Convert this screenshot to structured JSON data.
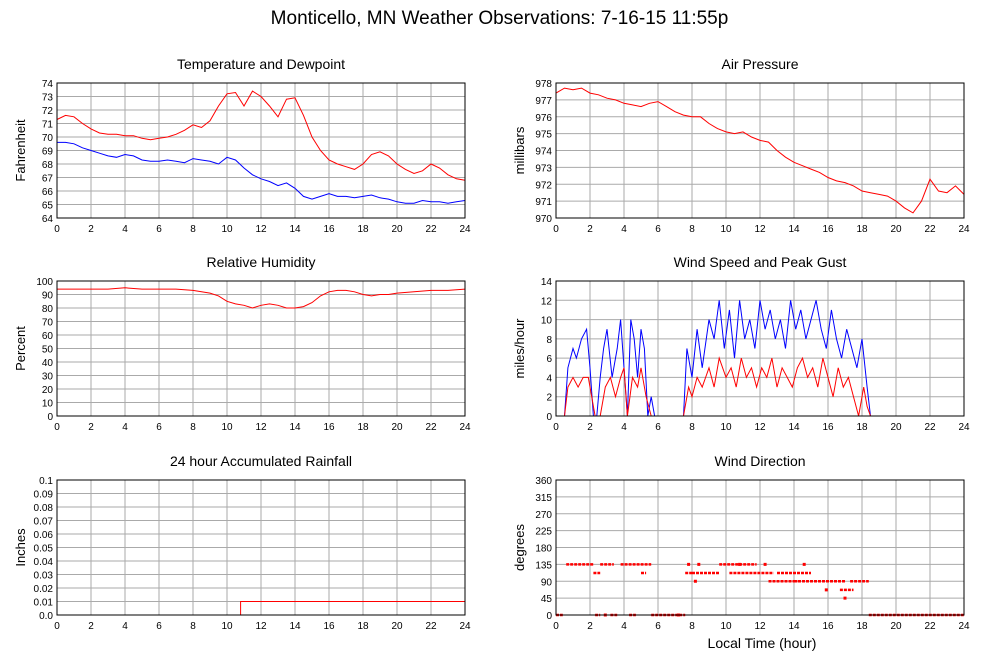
{
  "page": {
    "title": "Monticello, MN Weather Observations: 7-16-15 11:55p",
    "x_axis_label": "Local Time (hour)"
  },
  "colors": {
    "red": "#ff0000",
    "blue": "#0000ff",
    "grid": "#aaaaaa",
    "frame": "#000000"
  },
  "chart_data": [
    {
      "id": "temp",
      "type": "line",
      "title": "Temperature and Dewpoint",
      "ylabel": "Fahrenheit",
      "xlim": [
        0,
        24
      ],
      "ylim": [
        64,
        74
      ],
      "xticks": [
        0,
        2,
        4,
        6,
        8,
        10,
        12,
        14,
        16,
        18,
        20,
        22,
        24
      ],
      "yticks": [
        64,
        65,
        66,
        67,
        68,
        69,
        70,
        71,
        72,
        73,
        74
      ],
      "grid": true,
      "series": [
        {
          "color": "#ff0000",
          "x": [
            0,
            0.5,
            1,
            1.5,
            2,
            2.5,
            3,
            3.5,
            4,
            4.5,
            5,
            5.5,
            6,
            6.5,
            7,
            7.5,
            8,
            8.5,
            9,
            9.5,
            10,
            10.5,
            11,
            11.5,
            12,
            12.5,
            13,
            13.5,
            14,
            14.5,
            15,
            15.5,
            16,
            16.5,
            17,
            17.5,
            18,
            18.5,
            19,
            19.5,
            20,
            20.5,
            21,
            21.5,
            22,
            22.5,
            23,
            23.5,
            24
          ],
          "y": [
            71.3,
            71.6,
            71.5,
            71,
            70.6,
            70.3,
            70.2,
            70.2,
            70.1,
            70.1,
            69.9,
            69.8,
            69.9,
            70,
            70.2,
            70.5,
            70.9,
            70.7,
            71.2,
            72.3,
            73.2,
            73.3,
            72.3,
            73.4,
            73,
            72.3,
            71.5,
            72.8,
            72.9,
            71.6,
            70,
            69,
            68.3,
            68,
            67.8,
            67.6,
            68,
            68.7,
            68.9,
            68.6,
            68,
            67.6,
            67.3,
            67.5,
            68,
            67.7,
            67.2,
            66.9,
            66.8
          ]
        },
        {
          "color": "#0000ff",
          "x": [
            0,
            0.5,
            1,
            1.5,
            2,
            2.5,
            3,
            3.5,
            4,
            4.5,
            5,
            5.5,
            6,
            6.5,
            7,
            7.5,
            8,
            8.5,
            9,
            9.5,
            10,
            10.5,
            11,
            11.5,
            12,
            12.5,
            13,
            13.5,
            14,
            14.5,
            15,
            15.5,
            16,
            16.5,
            17,
            17.5,
            18,
            18.5,
            19,
            19.5,
            20,
            20.5,
            21,
            21.5,
            22,
            22.5,
            23,
            23.5,
            24
          ],
          "y": [
            69.6,
            69.6,
            69.5,
            69.2,
            69,
            68.8,
            68.6,
            68.5,
            68.7,
            68.6,
            68.3,
            68.2,
            68.2,
            68.3,
            68.2,
            68.1,
            68.4,
            68.3,
            68.2,
            68,
            68.5,
            68.3,
            67.7,
            67.2,
            66.9,
            66.7,
            66.4,
            66.6,
            66.2,
            65.6,
            65.4,
            65.6,
            65.8,
            65.6,
            65.6,
            65.5,
            65.6,
            65.7,
            65.5,
            65.4,
            65.2,
            65.1,
            65.1,
            65.3,
            65.2,
            65.2,
            65.1,
            65.2,
            65.3
          ]
        }
      ]
    },
    {
      "id": "pressure",
      "type": "line",
      "title": "Air Pressure",
      "ylabel": "millibars",
      "xlim": [
        0,
        24
      ],
      "ylim": [
        970,
        978
      ],
      "xticks": [
        0,
        2,
        4,
        6,
        8,
        10,
        12,
        14,
        16,
        18,
        20,
        22,
        24
      ],
      "yticks": [
        970,
        971,
        972,
        973,
        974,
        975,
        976,
        977,
        978
      ],
      "grid": true,
      "series": [
        {
          "color": "#ff0000",
          "x": [
            0,
            0.5,
            1,
            1.5,
            2,
            2.5,
            3,
            3.5,
            4,
            4.5,
            5,
            5.5,
            6,
            6.5,
            7,
            7.5,
            8,
            8.5,
            9,
            9.5,
            10,
            10.5,
            11,
            11.5,
            12,
            12.5,
            13,
            13.5,
            14,
            14.5,
            15,
            15.5,
            16,
            16.5,
            17,
            17.5,
            18,
            18.5,
            19,
            19.5,
            20,
            20.5,
            21,
            21.5,
            22,
            22.5,
            23,
            23.5,
            24
          ],
          "y": [
            977.4,
            977.7,
            977.6,
            977.7,
            977.4,
            977.3,
            977.1,
            977,
            976.8,
            976.7,
            976.6,
            976.8,
            976.9,
            976.6,
            976.3,
            976.1,
            976,
            976,
            975.6,
            975.3,
            975.1,
            975,
            975.1,
            974.8,
            974.6,
            974.5,
            974,
            973.6,
            973.3,
            973.1,
            972.9,
            972.7,
            972.4,
            972.2,
            972.1,
            971.9,
            971.6,
            971.5,
            971.4,
            971.3,
            971,
            970.6,
            970.3,
            971,
            972.3,
            971.6,
            971.5,
            971.9,
            971.4
          ]
        }
      ]
    },
    {
      "id": "humidity",
      "type": "line",
      "title": "Relative Humidity",
      "ylabel": "Percent",
      "xlim": [
        0,
        24
      ],
      "ylim": [
        0,
        100
      ],
      "xticks": [
        0,
        2,
        4,
        6,
        8,
        10,
        12,
        14,
        16,
        18,
        20,
        22,
        24
      ],
      "yticks": [
        0,
        10,
        20,
        30,
        40,
        50,
        60,
        70,
        80,
        90,
        100
      ],
      "grid": true,
      "series": [
        {
          "color": "#ff0000",
          "x": [
            0,
            1,
            2,
            3,
            4,
            5,
            6,
            7,
            8,
            8.5,
            9,
            9.5,
            10,
            10.5,
            11,
            11.5,
            12,
            12.5,
            13,
            13.5,
            14,
            14.5,
            15,
            15.5,
            16,
            16.5,
            17,
            17.5,
            18,
            18.5,
            19,
            19.5,
            20,
            21,
            22,
            23,
            24
          ],
          "y": [
            94,
            94,
            94,
            94,
            95,
            94,
            94,
            94,
            93,
            92,
            91,
            89,
            85,
            83,
            82,
            80,
            82,
            83,
            82,
            80,
            80,
            81,
            84,
            89,
            92,
            93,
            93,
            92,
            90,
            89,
            90,
            90,
            91,
            92,
            93,
            93,
            94
          ]
        }
      ]
    },
    {
      "id": "wind",
      "type": "line",
      "title": "Wind Speed and Peak Gust",
      "ylabel": "miles/hour",
      "xlim": [
        0,
        24
      ],
      "ylim": [
        0,
        14
      ],
      "xticks": [
        0,
        2,
        4,
        6,
        8,
        10,
        12,
        14,
        16,
        18,
        20,
        22,
        24
      ],
      "yticks": [
        0,
        2,
        4,
        6,
        8,
        10,
        12,
        14
      ],
      "grid": true,
      "series": [
        {
          "color": "#0000ff",
          "x": [
            0,
            0.5,
            0.7,
            1,
            1.2,
            1.5,
            1.8,
            2,
            2.2,
            2.4,
            2.6,
            2.8,
            3,
            3.3,
            3.6,
            3.8,
            4,
            4.2,
            4.4,
            4.6,
            4.8,
            5,
            5.2,
            5.4,
            5.6,
            5.8,
            6,
            7.5,
            7.7,
            8,
            8.3,
            8.6,
            9,
            9.3,
            9.6,
            9.9,
            10.2,
            10.5,
            10.8,
            11.1,
            11.4,
            11.7,
            12,
            12.3,
            12.6,
            12.9,
            13.2,
            13.5,
            13.8,
            14.1,
            14.4,
            14.7,
            15,
            15.3,
            15.6,
            15.9,
            16.2,
            16.5,
            16.8,
            17.1,
            17.4,
            17.7,
            18,
            18.3,
            18.5,
            20,
            22,
            24
          ],
          "y": [
            0,
            0,
            5,
            7,
            6,
            8,
            9,
            5,
            0,
            0,
            4,
            7,
            9,
            4,
            7,
            10,
            5,
            0,
            10,
            8,
            4,
            9,
            7,
            0,
            2,
            0,
            0,
            0,
            7,
            4,
            9,
            5,
            10,
            8,
            12,
            7,
            11,
            6,
            12,
            8,
            10,
            7,
            12,
            9,
            11,
            8,
            10,
            7,
            12,
            9,
            11,
            8,
            10,
            12,
            9,
            7,
            11,
            8,
            6,
            9,
            7,
            5,
            8,
            3,
            0,
            0,
            0,
            0
          ]
        },
        {
          "color": "#ff0000",
          "x": [
            0,
            0.5,
            0.7,
            1,
            1.3,
            1.6,
            1.9,
            2.1,
            2.3,
            2.6,
            2.9,
            3.2,
            3.5,
            3.8,
            4,
            4.2,
            4.5,
            4.8,
            5,
            5.3,
            5.6,
            6,
            7.5,
            7.8,
            8,
            8.3,
            8.6,
            9,
            9.3,
            9.6,
            10,
            10.3,
            10.6,
            10.9,
            11.2,
            11.5,
            11.8,
            12.1,
            12.4,
            12.7,
            13,
            13.3,
            13.6,
            13.9,
            14.2,
            14.5,
            14.8,
            15.1,
            15.4,
            15.7,
            16,
            16.3,
            16.6,
            16.9,
            17.2,
            17.5,
            17.8,
            18.1,
            18.3,
            18.5,
            20,
            24
          ],
          "y": [
            0,
            0,
            3,
            4,
            3,
            4,
            4,
            2,
            0,
            0,
            3,
            4,
            2,
            4,
            5,
            0,
            4,
            3,
            5,
            2,
            0,
            0,
            0,
            3,
            2,
            4,
            3,
            5,
            3,
            6,
            4,
            5,
            3,
            6,
            4,
            5,
            3,
            5,
            4,
            6,
            3,
            5,
            4,
            3,
            5,
            6,
            4,
            5,
            3,
            6,
            4,
            2,
            5,
            3,
            4,
            2,
            0,
            3,
            1,
            0,
            0,
            0
          ]
        }
      ]
    },
    {
      "id": "rain",
      "type": "line",
      "title": "24 hour Accumulated Rainfall",
      "ylabel": "Inches",
      "xlim": [
        0,
        24
      ],
      "ylim": [
        0,
        0.1
      ],
      "xticks": [
        0,
        2,
        4,
        6,
        8,
        10,
        12,
        14,
        16,
        18,
        20,
        22,
        24
      ],
      "yticks": [
        "0.0",
        "0.01",
        "0.02",
        "0.03",
        "0.04",
        "0.05",
        "0.06",
        "0.07",
        "0.08",
        "0.09",
        "0.1"
      ],
      "grid": true,
      "series": [
        {
          "color": "#ff0000",
          "x": [
            0,
            10.8,
            10.8,
            24
          ],
          "y": [
            0,
            0,
            0.01,
            0.01
          ]
        }
      ]
    },
    {
      "id": "direction",
      "type": "scatter",
      "title": "Wind Direction",
      "ylabel": "degrees",
      "xlim": [
        0,
        24
      ],
      "ylim": [
        0,
        360
      ],
      "xticks": [
        0,
        2,
        4,
        6,
        8,
        10,
        12,
        14,
        16,
        18,
        20,
        22,
        24
      ],
      "yticks": [
        0,
        45,
        90,
        135,
        180,
        225,
        270,
        315,
        360
      ],
      "grid": true,
      "segments": [
        {
          "color": "#ff0000",
          "x0": 0,
          "x1": 0.4,
          "y": 0
        },
        {
          "color": "#ff0000",
          "x0": 0.6,
          "x1": 2.2,
          "y": 135
        },
        {
          "color": "#ff0000",
          "x0": 2.2,
          "x1": 2.6,
          "y": 112
        },
        {
          "color": "#ff0000",
          "x0": 2.3,
          "x1": 2.6,
          "y": 0
        },
        {
          "color": "#ff0000",
          "x0": 2.6,
          "x1": 3.4,
          "y": 135
        },
        {
          "color": "#ff0000",
          "x0": 3.2,
          "x1": 3.6,
          "y": 0
        },
        {
          "color": "#ff0000",
          "x0": 3.8,
          "x1": 5.6,
          "y": 135
        },
        {
          "color": "#ff0000",
          "x0": 4.3,
          "x1": 4.7,
          "y": 0
        },
        {
          "color": "#ff0000",
          "x0": 5.0,
          "x1": 5.3,
          "y": 112
        },
        {
          "color": "#ff0000",
          "x0": 5.6,
          "x1": 7.6,
          "y": 0
        },
        {
          "color": "#ff0000",
          "x0": 7.6,
          "x1": 8.0,
          "y": 112
        },
        {
          "color": "#ff0000",
          "x0": 8.0,
          "x1": 9.6,
          "y": 112
        },
        {
          "color": "#ff0000",
          "x0": 9.6,
          "x1": 11.8,
          "y": 135
        },
        {
          "color": "#ff0000",
          "x0": 10.2,
          "x1": 12.8,
          "y": 112
        },
        {
          "color": "#ff0000",
          "x0": 12.5,
          "x1": 14.2,
          "y": 90
        },
        {
          "color": "#ff0000",
          "x0": 13.0,
          "x1": 15.0,
          "y": 112
        },
        {
          "color": "#ff0000",
          "x0": 14.0,
          "x1": 17.0,
          "y": 90
        },
        {
          "color": "#ff0000",
          "x0": 16.7,
          "x1": 17.5,
          "y": 67
        },
        {
          "color": "#ff0000",
          "x0": 17.3,
          "x1": 18.4,
          "y": 90
        },
        {
          "color": "#ff0000",
          "x0": 18.4,
          "x1": 24,
          "y": 0
        }
      ],
      "points": [
        {
          "x": 7.8,
          "y": 135
        },
        {
          "x": 8.4,
          "y": 135
        },
        {
          "x": 8.2,
          "y": 90
        },
        {
          "x": 10.8,
          "y": 135
        },
        {
          "x": 12.3,
          "y": 135
        },
        {
          "x": 14.6,
          "y": 135
        },
        {
          "x": 15.9,
          "y": 67
        },
        {
          "x": 17.0,
          "y": 45
        },
        {
          "x": 7.2,
          "y": 0
        },
        {
          "x": 2.9,
          "y": 0
        }
      ]
    }
  ]
}
